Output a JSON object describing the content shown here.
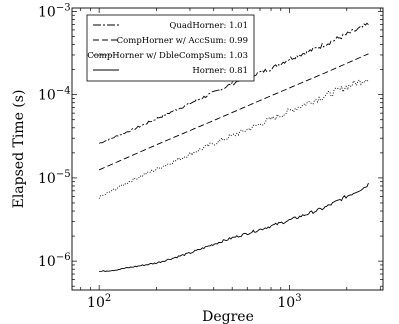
{
  "chart_data": {
    "type": "line",
    "xlabel": "Degree",
    "ylabel": "Elapsed Time (s)",
    "xscale": "log",
    "yscale": "log",
    "xlim": [
      72,
      3100
    ],
    "ylim": [
      4.5e-07,
      0.0011
    ],
    "grid": false,
    "legend_position": "top-left",
    "x_ticks": [
      {
        "value": 100,
        "base": "10",
        "exp": "2"
      },
      {
        "value": 1000,
        "base": "10",
        "exp": "3"
      }
    ],
    "y_ticks": [
      {
        "value": 1e-06,
        "base": "10",
        "exp": "−6"
      },
      {
        "value": 1e-05,
        "base": "10",
        "exp": "−5"
      },
      {
        "value": 0.0001,
        "base": "10",
        "exp": "−4"
      },
      {
        "value": 0.001,
        "base": "10",
        "exp": "−3"
      }
    ],
    "series": [
      {
        "name": "QuadHorner",
        "slope_label": "1.01",
        "dash": "8,2,2,2",
        "x": [
          100,
          150,
          250,
          400,
          600,
          800,
          1000,
          1300,
          1600,
          2000,
          2300,
          2600
        ],
        "y": [
          2.6e-05,
          3.8e-05,
          6.5e-05,
          0.000106,
          0.000165,
          0.000205,
          0.00027,
          0.00034,
          0.00042,
          0.00053,
          0.00061,
          0.0007
        ],
        "noise": 0.05
      },
      {
        "name": "CompHorner w/ AccSum",
        "slope_label": "0.99",
        "dash": "6,3",
        "x": [
          100,
          200,
          400,
          800,
          1600,
          2600
        ],
        "y": [
          1.25e-05,
          2.5e-05,
          4.9e-05,
          9.7e-05,
          0.00019,
          0.00031
        ],
        "noise": 0.0
      },
      {
        "name": "CompHorner w/ DbleCompSum",
        "slope_label": "1.03",
        "dash": "1,1.6",
        "x": [
          100,
          150,
          250,
          400,
          600,
          900,
          1300,
          1800,
          2600
        ],
        "y": [
          5.8e-06,
          9.5e-06,
          1.6e-05,
          2.6e-05,
          3.8e-05,
          5.7e-05,
          8.3e-05,
          0.000112,
          0.00016
        ],
        "noise": 0.07
      },
      {
        "name": "Horner",
        "slope_label": "0.81",
        "dash": "",
        "x": [
          100,
          120,
          150,
          200,
          300,
          400,
          500,
          700,
          1000,
          1500,
          2000,
          2500,
          2600
        ],
        "y": [
          7.5e-07,
          7.8e-07,
          8.5e-07,
          9.5e-07,
          1.25e-06,
          1.6e-06,
          1.9e-06,
          2.4e-06,
          3.1e-06,
          4.3e-06,
          6e-06,
          7.8e-06,
          8.5e-06
        ],
        "noise": 0.035
      }
    ]
  }
}
